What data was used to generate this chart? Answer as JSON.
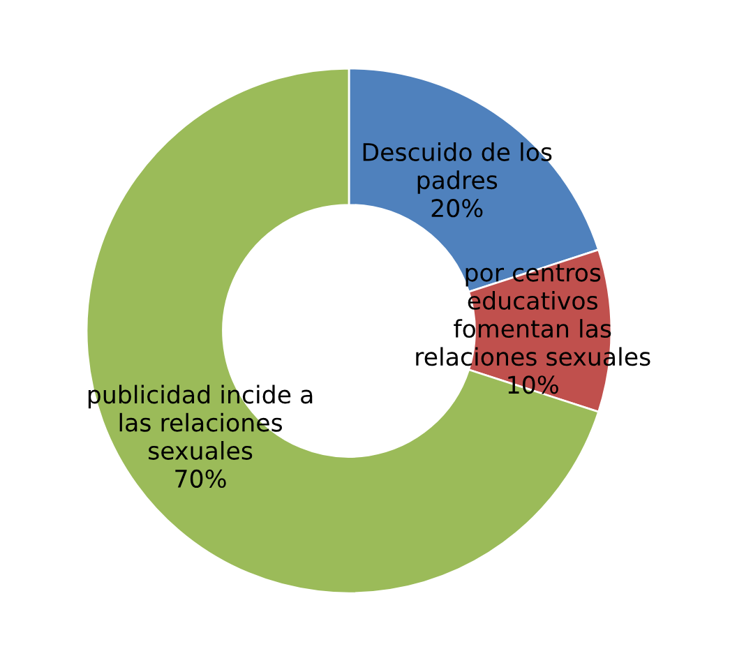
{
  "chart_data": {
    "type": "donut",
    "categories": [
      "Descuido de los\npadres",
      "por centros\neducativos\nfomentan las\nrelaciones sexuales",
      "publicidad incide a\nlas relaciones\nsexuales"
    ],
    "values": [
      20,
      10,
      70
    ],
    "colors": [
      "#4f81bd",
      "#c0504d",
      "#9bbb59"
    ],
    "value_labels": [
      "20%",
      "10%",
      "70%"
    ],
    "legend": false
  }
}
